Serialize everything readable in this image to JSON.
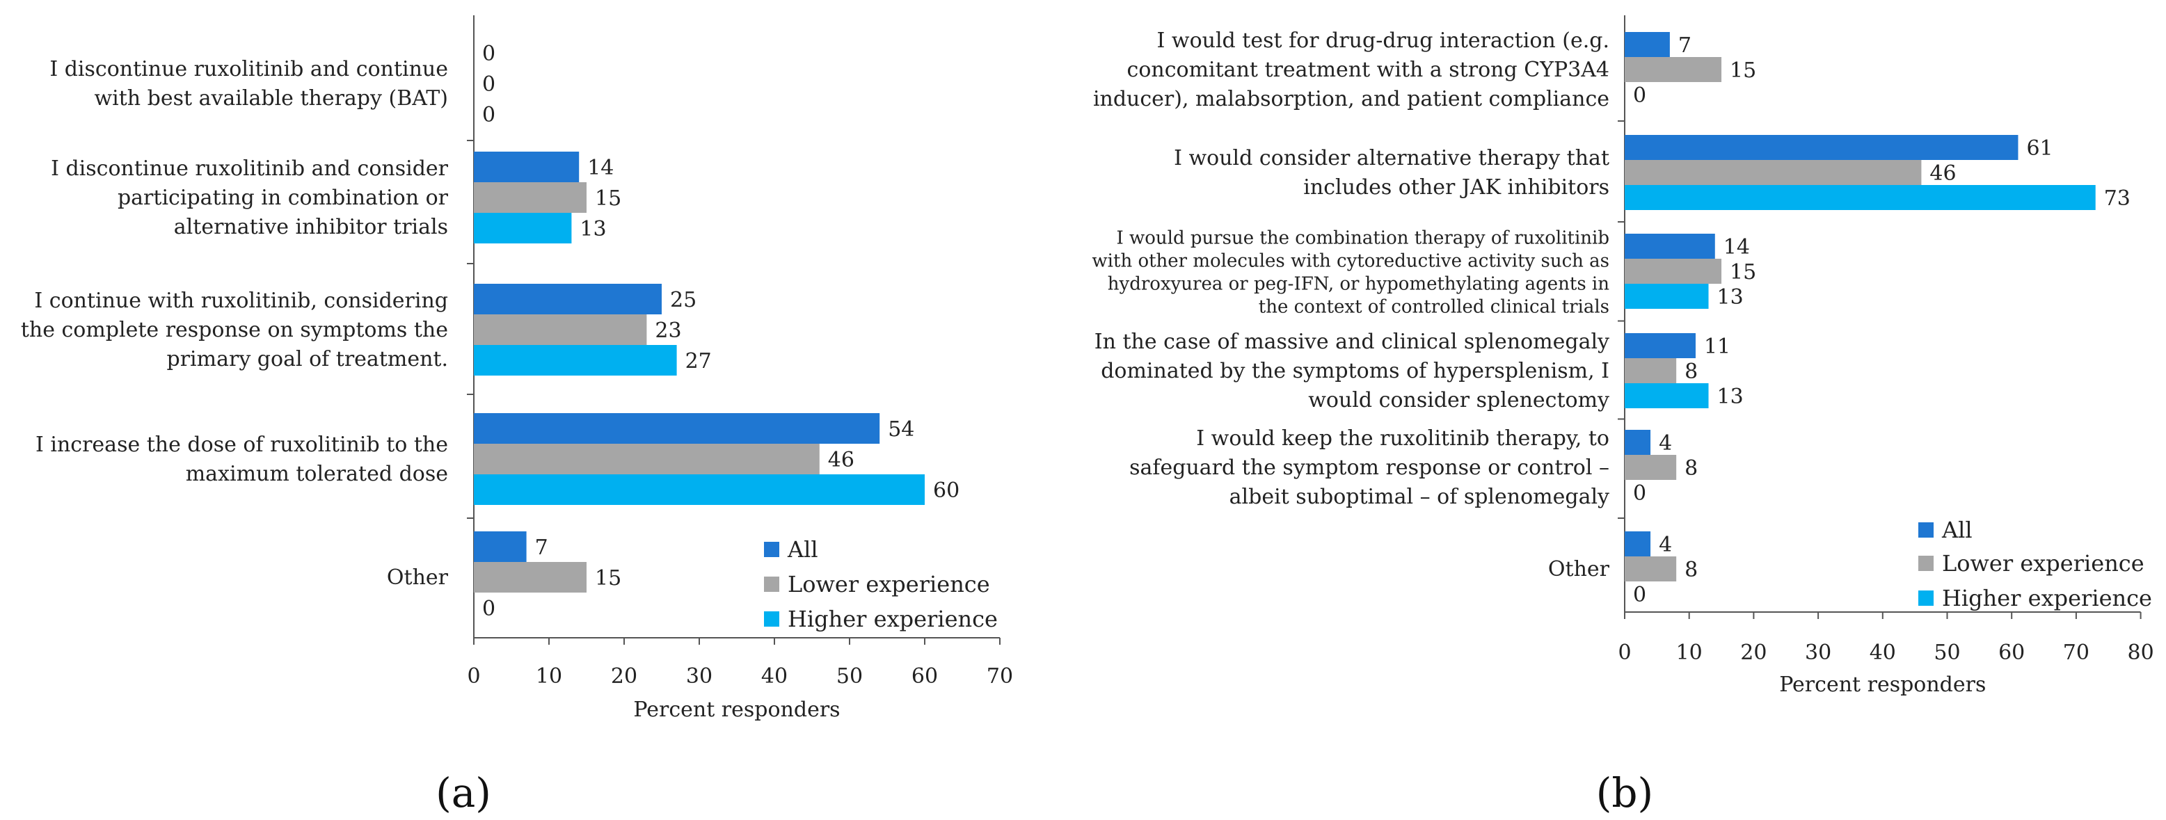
{
  "colors": {
    "all": "#1f77d2",
    "lower": "#a6a6a6",
    "higher": "#00b0f0"
  },
  "legend": [
    "All",
    "Lower experience",
    "Higher experience"
  ],
  "panel_labels": [
    "(a)",
    "(b)"
  ],
  "chart_data": [
    {
      "type": "bar",
      "orientation": "horizontal",
      "panel": "(a)",
      "xlabel": "Percent responders",
      "xlim": [
        0,
        70
      ],
      "xticks": [
        0,
        10,
        20,
        30,
        40,
        50,
        60,
        70
      ],
      "legend_position": "bottom-right",
      "categories": [
        [
          "I discontinue ruxolitinib and continue",
          "with best available therapy (BAT)"
        ],
        [
          "I discontinue ruxolitinib and consider",
          "participating in combination or",
          "alternative inhibitor trials"
        ],
        [
          "I continue with ruxolitinib, considering",
          "the complete response on symptoms the",
          "primary goal of treatment."
        ],
        [
          "I increase the dose of ruxolitinib to the",
          "maximum tolerated dose"
        ],
        [
          "Other"
        ]
      ],
      "series": [
        {
          "name": "All",
          "values": [
            0,
            14,
            25,
            54,
            7
          ]
        },
        {
          "name": "Lower experience",
          "values": [
            0,
            15,
            23,
            46,
            15
          ]
        },
        {
          "name": "Higher experience",
          "values": [
            0,
            13,
            27,
            60,
            0
          ]
        }
      ]
    },
    {
      "type": "bar",
      "orientation": "horizontal",
      "panel": "(b)",
      "xlabel": "Percent responders",
      "xlim": [
        0,
        80
      ],
      "xticks": [
        0,
        10,
        20,
        30,
        40,
        50,
        60,
        70,
        80
      ],
      "legend_position": "bottom-right",
      "categories": [
        [
          "I would test for drug-drug interaction (e.g.",
          "concomitant treatment with a strong CYP3A4",
          "inducer), malabsorption, and patient compliance"
        ],
        [
          "I would consider alternative therapy that",
          "includes other JAK inhibitors"
        ],
        [
          "I would pursue the combination therapy of ruxolitinib",
          "with other molecules with cytoreductive activity such as",
          "hydroxyurea or peg-IFN, or hypomethylating agents in",
          "the context of controlled clinical trials"
        ],
        [
          "In the case of massive and clinical splenomegaly",
          "dominated by the symptoms of hypersplenism, I",
          "would consider splenectomy"
        ],
        [
          "I would keep the ruxolitinib therapy, to",
          "safeguard the symptom response or control –",
          "albeit suboptimal – of splenomegaly"
        ],
        [
          "Other"
        ]
      ],
      "series": [
        {
          "name": "All",
          "values": [
            7,
            61,
            14,
            11,
            4,
            4
          ]
        },
        {
          "name": "Lower experience",
          "values": [
            15,
            46,
            15,
            8,
            8,
            8
          ]
        },
        {
          "name": "Higher experience",
          "values": [
            0,
            73,
            13,
            13,
            0,
            0
          ]
        }
      ]
    }
  ]
}
